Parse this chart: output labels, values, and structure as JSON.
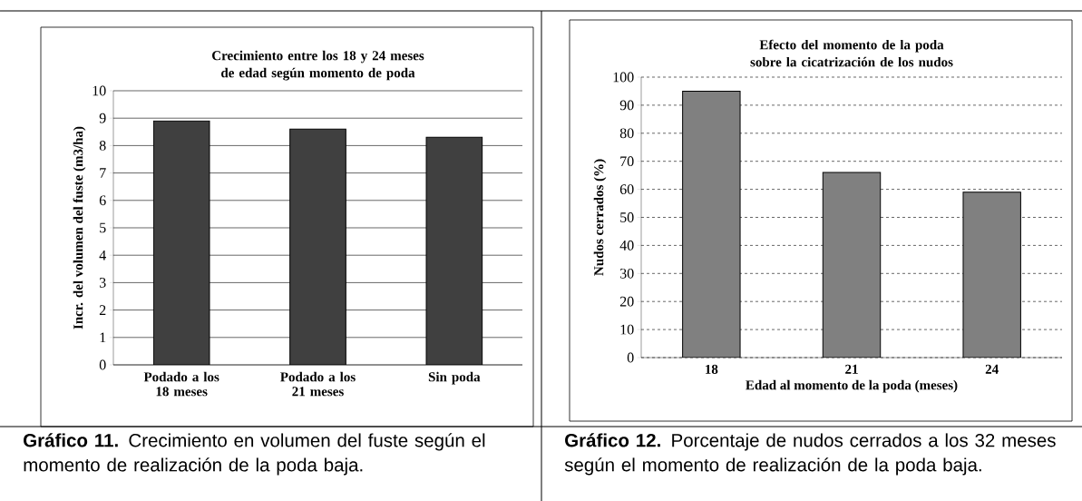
{
  "chart_data": [
    {
      "type": "bar",
      "title": "Crecimiento entre los 18 y 24 meses de edad según momento de poda",
      "ylabel": "Incr. del volumen del fuste (m3/ha)",
      "categories": [
        "Podado a los 18 meses",
        "Podado a los 21 meses",
        "Sin poda"
      ],
      "values": [
        8.9,
        8.6,
        8.3
      ],
      "color": "#404040",
      "ylim": [
        0,
        10
      ],
      "yticks": [
        0,
        1,
        2,
        3,
        4,
        5,
        6,
        7,
        8,
        9,
        10
      ],
      "grid": "y",
      "annotations": [
        "**Gráfico 11.** Crecimiento en volumen del fuste según el momento de realización de la poda baja."
      ]
    },
    {
      "type": "bar",
      "title": "Efecto del momento de la poda sobre la cicatrización de los nudos",
      "xlabel": "Edad al momento de la poda (meses)",
      "ylabel": "Nudos cerrados (%)",
      "categories": [
        "18",
        "21",
        "24"
      ],
      "values": [
        95,
        66,
        59
      ],
      "color": "#808080",
      "ylim": [
        0,
        100
      ],
      "yticks": [
        0,
        10,
        20,
        30,
        40,
        50,
        60,
        70,
        80,
        90,
        100
      ],
      "grid": "y",
      "annotations": [
        "**Gráfico 12.** Porcentaje de nudos cerrados a los 32 meses según el momento de realización de la poda baja."
      ]
    }
  ]
}
